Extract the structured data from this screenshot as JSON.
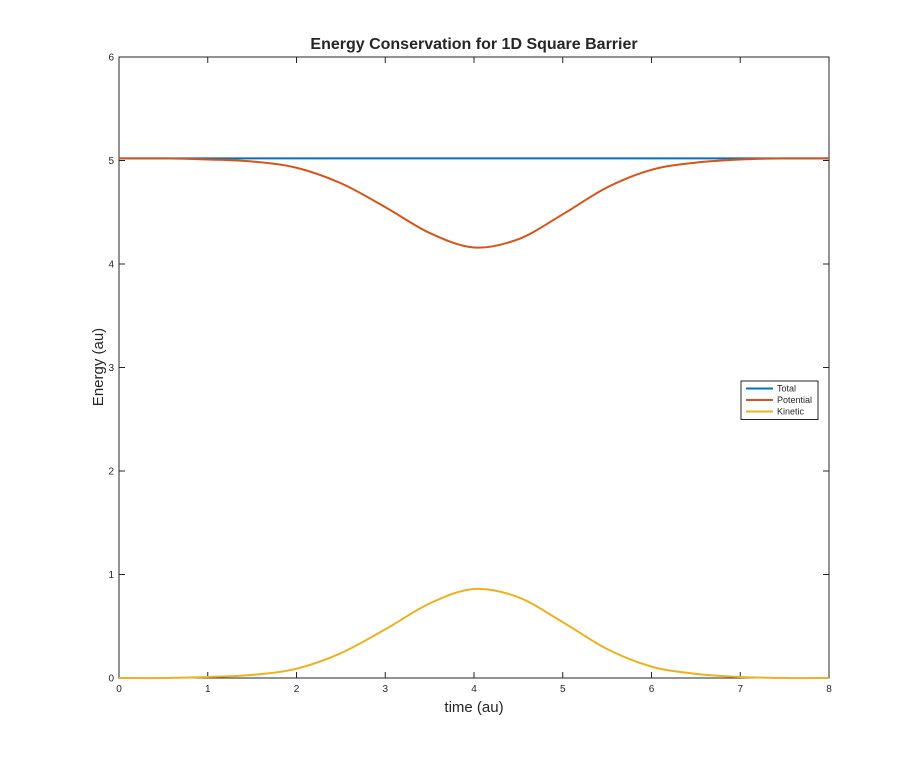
{
  "chart_data": {
    "type": "line",
    "title": "Energy Conservation for 1D Square Barrier",
    "xlabel": "time (au)",
    "ylabel": "Energy (au)",
    "xlim": [
      0,
      8
    ],
    "ylim": [
      0,
      6
    ],
    "xticks": [
      "0",
      "1",
      "2",
      "3",
      "4",
      "5",
      "6",
      "7",
      "8"
    ],
    "yticks": [
      "0",
      "1",
      "2",
      "3",
      "4",
      "5",
      "6"
    ],
    "grid": false,
    "legend_position": "right",
    "x": [
      0,
      0.5,
      1,
      1.5,
      2,
      2.5,
      3,
      3.5,
      4,
      4.5,
      5,
      5.5,
      6,
      6.5,
      7,
      7.5,
      8
    ],
    "series": [
      {
        "name": "Total",
        "color": "#0072BD",
        "values": [
          5.02,
          5.02,
          5.02,
          5.02,
          5.02,
          5.02,
          5.02,
          5.02,
          5.02,
          5.02,
          5.02,
          5.02,
          5.02,
          5.02,
          5.02,
          5.02,
          5.02
        ]
      },
      {
        "name": "Potential",
        "color": "#D95319",
        "values": [
          5.02,
          5.02,
          5.01,
          4.99,
          4.93,
          4.78,
          4.55,
          4.3,
          4.16,
          4.24,
          4.48,
          4.74,
          4.91,
          4.98,
          5.01,
          5.02,
          5.02
        ]
      },
      {
        "name": "Kinetic",
        "color": "#EDB120",
        "values": [
          0.0,
          0.0,
          0.01,
          0.03,
          0.09,
          0.24,
          0.47,
          0.72,
          0.86,
          0.78,
          0.54,
          0.28,
          0.11,
          0.04,
          0.01,
          0.0,
          0.0
        ]
      }
    ]
  }
}
